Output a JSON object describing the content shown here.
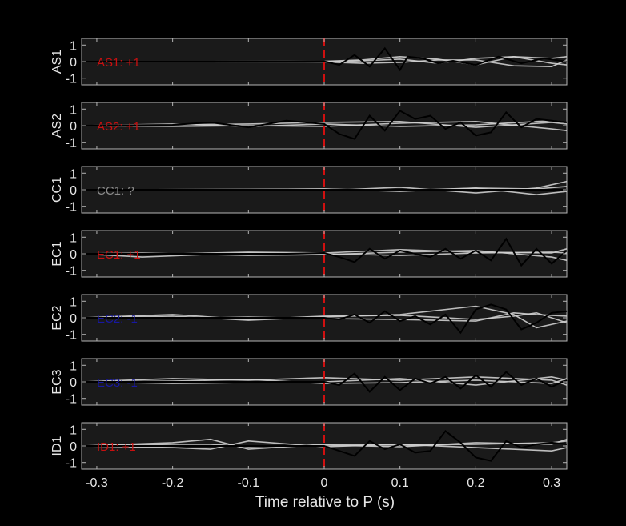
{
  "chart_data": {
    "type": "line",
    "xlabel": "Time relative to P (s)",
    "xlim": [
      -0.32,
      0.32
    ],
    "xticks": [
      -0.3,
      -0.2,
      -0.1,
      0,
      0.1,
      0.2,
      0.3
    ],
    "xtick_labels": [
      "-0.3",
      "-0.2",
      "-0.1",
      "0",
      "0.1",
      "0.2",
      "0.3"
    ],
    "ylim": [
      -1.4,
      1.4
    ],
    "yticks": [
      1,
      0,
      -1
    ],
    "ytick_labels": [
      "1",
      "0",
      "-1"
    ],
    "marker_time": 0,
    "colors": {
      "background": "#000000",
      "panel": "#1a1a1a",
      "frame": "#b5b5b5",
      "text": "#e6e6e6",
      "marker": "#d01010",
      "reference_trace": "#000000",
      "ensemble_traces": "#cfcfcf",
      "positive": "#c81010",
      "negative": "#1818a0",
      "unknown": "#8a8a8a"
    },
    "panels": [
      {
        "station": "AS1",
        "label": "AS1: +1",
        "label_color": "#c81010",
        "reference": {
          "x": [
            -0.32,
            -0.05,
            0,
            0.02,
            0.04,
            0.06,
            0.08,
            0.1,
            0.11,
            0.13,
            0.15,
            0.17,
            0.2,
            0.23,
            0.26,
            0.29,
            0.32
          ],
          "y": [
            0,
            0,
            0.02,
            -0.2,
            0.4,
            -0.3,
            0.8,
            -0.5,
            0.3,
            0.2,
            -0.1,
            0.05,
            -0.2,
            0.3,
            -0.1,
            0.2,
            0
          ]
        },
        "ensemble": [
          {
            "x": [
              -0.32,
              0,
              0.05,
              0.1,
              0.15,
              0.2,
              0.25,
              0.3,
              0.32
            ],
            "y": [
              0,
              0.02,
              0.1,
              0.3,
              0.15,
              -0.2,
              0.3,
              0.2,
              0.3
            ]
          },
          {
            "x": [
              -0.32,
              0,
              0.05,
              0.1,
              0.15,
              0.2,
              0.25,
              0.3,
              0.32
            ],
            "y": [
              0,
              -0.02,
              -0.1,
              -0.05,
              0.1,
              0.1,
              -0.25,
              -0.3,
              0.1
            ]
          },
          {
            "x": [
              -0.32,
              0,
              0.05,
              0.1,
              0.15,
              0.2,
              0.25,
              0.3,
              0.32
            ],
            "y": [
              0,
              0,
              0.05,
              0.15,
              -0.1,
              0.2,
              0.3,
              -0.1,
              -0.2
            ]
          }
        ]
      },
      {
        "station": "AS2",
        "label": "AS2: +1",
        "label_color": "#c81010",
        "reference": {
          "x": [
            -0.32,
            -0.2,
            -0.15,
            -0.1,
            -0.05,
            0,
            0.02,
            0.04,
            0.06,
            0.08,
            0.1,
            0.12,
            0.14,
            0.16,
            0.18,
            0.2,
            0.22,
            0.24,
            0.26,
            0.28,
            0.3,
            0.32
          ],
          "y": [
            0,
            0.05,
            0.2,
            -0.1,
            0.3,
            0.1,
            -0.5,
            -0.8,
            0.6,
            -0.3,
            0.9,
            0.4,
            0.6,
            -0.2,
            0.2,
            -0.6,
            -0.4,
            0.8,
            -0.1,
            0.4,
            0.3,
            0.2
          ]
        },
        "ensemble": [
          {
            "x": [
              -0.32,
              -0.2,
              -0.1,
              0,
              0.1,
              0.2,
              0.3,
              0.32
            ],
            "y": [
              0,
              0.05,
              0.1,
              0.2,
              0.25,
              -0.1,
              0.2,
              0.1
            ]
          },
          {
            "x": [
              -0.32,
              -0.2,
              -0.1,
              0,
              0.1,
              0.2,
              0.3,
              0.32
            ],
            "y": [
              0,
              -0.05,
              0,
              -0.05,
              0.15,
              0.25,
              -0.2,
              -0.3
            ]
          },
          {
            "x": [
              -0.32,
              -0.2,
              -0.1,
              0,
              0.1,
              0.2,
              0.3,
              0.32
            ],
            "y": [
              0,
              0.1,
              -0.05,
              0.1,
              -0.05,
              0.05,
              0.3,
              0.2
            ]
          }
        ]
      },
      {
        "station": "CC1",
        "label": "CC1: ?",
        "label_color": "#8a8a8a",
        "reference": {
          "x": [
            -0.32,
            0.32
          ],
          "y": [
            0,
            0
          ]
        },
        "ensemble": [
          {
            "x": [
              -0.32,
              -0.1,
              0,
              0.1,
              0.2,
              0.28,
              0.32
            ],
            "y": [
              0,
              0.02,
              0.05,
              -0.1,
              0.1,
              0.05,
              0.2
            ]
          },
          {
            "x": [
              -0.32,
              -0.1,
              0,
              0.1,
              0.2,
              0.28,
              0.32
            ],
            "y": [
              0,
              -0.02,
              -0.05,
              0.15,
              -0.2,
              0.1,
              0.5
            ]
          },
          {
            "x": [
              -0.32,
              -0.1,
              0,
              0.1,
              0.2,
              0.28,
              0.32
            ],
            "y": [
              0,
              0.02,
              0.05,
              -0.05,
              0.1,
              -0.3,
              -0.1
            ]
          }
        ]
      },
      {
        "station": "EC1",
        "label": "EC1: +1",
        "label_color": "#c81010",
        "reference": {
          "x": [
            -0.32,
            -0.05,
            0,
            0.02,
            0.04,
            0.06,
            0.08,
            0.1,
            0.12,
            0.14,
            0.16,
            0.18,
            0.2,
            0.22,
            0.24,
            0.26,
            0.28,
            0.3,
            0.32
          ],
          "y": [
            0,
            0,
            0.05,
            -0.2,
            -0.5,
            0.3,
            -0.3,
            0.2,
            0,
            -0.2,
            0.3,
            -0.3,
            0.2,
            -0.4,
            0.9,
            -0.7,
            0.3,
            -0.6,
            0.2
          ]
        },
        "ensemble": [
          {
            "x": [
              -0.32,
              -0.24,
              -0.1,
              0,
              0.1,
              0.2,
              0.3,
              0.32
            ],
            "y": [
              0,
              -0.05,
              0.1,
              0.05,
              0.25,
              0.1,
              0.05,
              0.3
            ]
          },
          {
            "x": [
              -0.32,
              -0.24,
              -0.1,
              0,
              0.1,
              0.2,
              0.3,
              0.32
            ],
            "y": [
              0,
              0.05,
              -0.1,
              -0.05,
              0.1,
              0.2,
              -0.2,
              -0.4
            ]
          },
          {
            "x": [
              -0.32,
              -0.24,
              -0.1,
              0,
              0.1,
              0.2,
              0.3,
              0.32
            ],
            "y": [
              0,
              -0.2,
              0.05,
              0,
              -0.1,
              0.05,
              0.1,
              0.05
            ]
          }
        ]
      },
      {
        "station": "EC2",
        "label": "EC2: -1",
        "label_color": "#1818a0",
        "reference": {
          "x": [
            -0.32,
            0,
            0.02,
            0.04,
            0.06,
            0.08,
            0.1,
            0.12,
            0.14,
            0.16,
            0.18,
            0.2,
            0.22,
            0.24,
            0.26,
            0.28,
            0.3,
            0.32
          ],
          "y": [
            0,
            0,
            -0.1,
            0.2,
            -0.3,
            0.4,
            -0.2,
            0.1,
            -0.4,
            0.2,
            -0.9,
            0.5,
            0.8,
            0.5,
            -0.7,
            -0.3,
            0.3,
            0.4
          ]
        },
        "ensemble": [
          {
            "x": [
              -0.32,
              -0.2,
              -0.1,
              0,
              0.1,
              0.2,
              0.25,
              0.28,
              0.32
            ],
            "y": [
              0,
              0.1,
              -0.15,
              0.05,
              0.2,
              0.7,
              0.2,
              -0.6,
              -0.2
            ]
          },
          {
            "x": [
              -0.32,
              -0.2,
              -0.1,
              0,
              0.1,
              0.2,
              0.25,
              0.28,
              0.32
            ],
            "y": [
              0,
              -0.05,
              0.05,
              -0.05,
              -0.1,
              -0.2,
              0.3,
              0.2,
              0.1
            ]
          },
          {
            "x": [
              -0.32,
              -0.2,
              -0.1,
              0,
              0.1,
              0.2,
              0.25,
              0.28,
              0.32
            ],
            "y": [
              0,
              0.2,
              -0.1,
              0.1,
              0.15,
              -0.1,
              0.1,
              0.3,
              -0.3
            ]
          }
        ]
      },
      {
        "station": "EC3",
        "label": "EC3: -1",
        "label_color": "#1818a0",
        "reference": {
          "x": [
            -0.32,
            0,
            0.02,
            0.04,
            0.06,
            0.08,
            0.1,
            0.12,
            0.14,
            0.16,
            0.18,
            0.2,
            0.22,
            0.24,
            0.26,
            0.28,
            0.3,
            0.32
          ],
          "y": [
            0,
            0,
            -0.2,
            0.5,
            -0.6,
            0.3,
            -0.5,
            0.2,
            -0.1,
            0.3,
            -0.4,
            0.4,
            -0.3,
            0.6,
            -0.2,
            0.2,
            -0.3,
            0.1
          ]
        },
        "ensemble": [
          {
            "x": [
              -0.32,
              -0.2,
              -0.1,
              0,
              0.1,
              0.2,
              0.3,
              0.32
            ],
            "y": [
              0,
              0.2,
              0.1,
              0.25,
              0.1,
              0.3,
              0.1,
              -0.2
            ]
          },
          {
            "x": [
              -0.32,
              -0.2,
              -0.1,
              0,
              0.1,
              0.2,
              0.3,
              0.32
            ],
            "y": [
              0,
              -0.1,
              -0.05,
              0,
              0.2,
              -0.2,
              0.3,
              0.1
            ]
          },
          {
            "x": [
              -0.32,
              -0.2,
              -0.1,
              0,
              0.1,
              0.2,
              0.3,
              0.32
            ],
            "y": [
              0,
              0.05,
              0.15,
              -0.1,
              -0.05,
              0.1,
              -0.1,
              0.2
            ]
          }
        ]
      },
      {
        "station": "ID1",
        "label": "ID1: +1",
        "label_color": "#c81010",
        "reference": {
          "x": [
            -0.32,
            0,
            0.02,
            0.04,
            0.06,
            0.08,
            0.1,
            0.12,
            0.14,
            0.16,
            0.18,
            0.2,
            0.22,
            0.24,
            0.26,
            0.28,
            0.3,
            0.32
          ],
          "y": [
            0,
            0,
            -0.3,
            -0.6,
            0.3,
            -0.2,
            0.1,
            -0.4,
            -0.3,
            0.9,
            0.2,
            -0.7,
            -0.9,
            0.3,
            -0.1,
            0.1,
            0.2,
            0.1
          ]
        },
        "ensemble": [
          {
            "x": [
              -0.32,
              -0.2,
              -0.15,
              -0.1,
              0,
              0.1,
              0.2,
              0.3,
              0.32
            ],
            "y": [
              0,
              0.2,
              0.4,
              -0.2,
              0.1,
              0.05,
              0.1,
              0.2,
              0.3
            ]
          },
          {
            "x": [
              -0.32,
              -0.2,
              -0.15,
              -0.1,
              0,
              0.1,
              0.2,
              0.3,
              0.32
            ],
            "y": [
              0,
              -0.1,
              -0.2,
              0.3,
              -0.05,
              0.1,
              -0.1,
              -0.3,
              -0.1
            ]
          },
          {
            "x": [
              -0.32,
              -0.2,
              -0.15,
              -0.1,
              0,
              0.1,
              0.2,
              0.3,
              0.32
            ],
            "y": [
              0,
              0.1,
              0.1,
              -0.05,
              0.05,
              -0.05,
              0.2,
              0.1,
              0.4
            ]
          }
        ]
      }
    ]
  }
}
